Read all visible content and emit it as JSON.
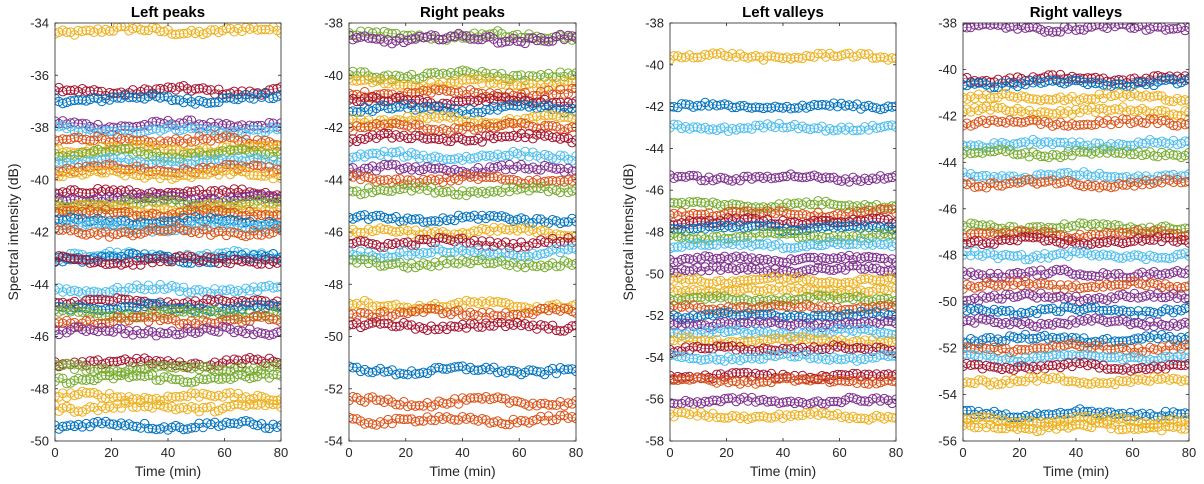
{
  "palette": [
    "#0072BD",
    "#D95319",
    "#EDB120",
    "#7E2F8E",
    "#77AC30",
    "#4DBEEE",
    "#A2142F"
  ],
  "chart_data": [
    {
      "type": "scatter",
      "title": "Left peaks",
      "xlabel": "Time (min)",
      "ylabel": "Spectral intensity (dB)",
      "xlim": [
        0,
        80
      ],
      "ylim": [
        -50,
        -34
      ],
      "xticks": [
        0,
        20,
        40,
        60,
        80
      ],
      "yticks": [
        -50,
        -48,
        -46,
        -44,
        -42,
        -40,
        -38,
        -36,
        -34
      ],
      "grid": false,
      "series": [
        {
          "values": [
            -34.3
          ],
          "color": "#EDB120"
        },
        {
          "values": [
            -36.6
          ],
          "color": "#A2142F"
        },
        {
          "values": [
            -36.9
          ],
          "color": "#0072BD"
        },
        {
          "values": [
            -37.9
          ],
          "color": "#7E2F8E"
        },
        {
          "values": [
            -38.1
          ],
          "color": "#4DBEEE"
        },
        {
          "values": [
            -38.5
          ],
          "color": "#D95319"
        },
        {
          "values": [
            -38.8
          ],
          "color": "#EDB120"
        },
        {
          "values": [
            -39.0
          ],
          "color": "#77AC30"
        },
        {
          "values": [
            -39.3
          ],
          "color": "#4DBEEE"
        },
        {
          "values": [
            -39.6
          ],
          "color": "#D95319"
        },
        {
          "values": [
            -39.8
          ],
          "color": "#EDB120"
        },
        {
          "values": [
            -40.5
          ],
          "color": "#A2142F"
        },
        {
          "values": [
            -40.7
          ],
          "color": "#7E2F8E"
        },
        {
          "values": [
            -40.9
          ],
          "color": "#77AC30"
        },
        {
          "values": [
            -41.1
          ],
          "color": "#EDB120"
        },
        {
          "values": [
            -41.3
          ],
          "color": "#D95319"
        },
        {
          "values": [
            -41.6
          ],
          "color": "#0072BD"
        },
        {
          "values": [
            -41.8
          ],
          "color": "#4DBEEE"
        },
        {
          "values": [
            -42.0
          ],
          "color": "#D95319"
        },
        {
          "values": [
            -42.9
          ],
          "color": "#4DBEEE"
        },
        {
          "values": [
            -43.0
          ],
          "color": "#0072BD"
        },
        {
          "values": [
            -43.1
          ],
          "color": "#A2142F"
        },
        {
          "values": [
            -44.2
          ],
          "color": "#4DBEEE"
        },
        {
          "values": [
            -44.7
          ],
          "color": "#A2142F"
        },
        {
          "values": [
            -44.9
          ],
          "color": "#0072BD"
        },
        {
          "values": [
            -45.1
          ],
          "color": "#77AC30"
        },
        {
          "values": [
            -45.4
          ],
          "color": "#D95319"
        },
        {
          "values": [
            -45.8
          ],
          "color": "#7E2F8E"
        },
        {
          "values": [
            -47.0
          ],
          "color": "#A2142F"
        },
        {
          "values": [
            -47.2
          ],
          "color": "#77AC30"
        },
        {
          "values": [
            -47.6
          ],
          "color": "#77AC30"
        },
        {
          "values": [
            -48.3
          ],
          "color": "#EDB120"
        },
        {
          "values": [
            -48.7
          ],
          "color": "#EDB120"
        },
        {
          "values": [
            -49.4
          ],
          "color": "#0072BD"
        }
      ]
    },
    {
      "type": "scatter",
      "title": "Right peaks",
      "xlabel": "Time (min)",
      "ylabel": "",
      "xlim": [
        0,
        80
      ],
      "ylim": [
        -54,
        -38
      ],
      "xticks": [
        0,
        20,
        40,
        60,
        80
      ],
      "yticks": [
        -54,
        -52,
        -50,
        -48,
        -46,
        -44,
        -42,
        -40,
        -38
      ],
      "grid": false,
      "series": [
        {
          "values": [
            -38.5
          ],
          "color": "#77AC30"
        },
        {
          "values": [
            -38.6
          ],
          "color": "#7E2F8E"
        },
        {
          "values": [
            -40.0
          ],
          "color": "#77AC30"
        },
        {
          "values": [
            -40.3
          ],
          "color": "#EDB120"
        },
        {
          "values": [
            -40.7
          ],
          "color": "#D95319"
        },
        {
          "values": [
            -41.0
          ],
          "color": "#A2142F"
        },
        {
          "values": [
            -41.3
          ],
          "color": "#0072BD"
        },
        {
          "values": [
            -41.7
          ],
          "color": "#EDB120"
        },
        {
          "values": [
            -42.0
          ],
          "color": "#D95319"
        },
        {
          "values": [
            -42.4
          ],
          "color": "#A2142F"
        },
        {
          "values": [
            -43.1
          ],
          "color": "#4DBEEE"
        },
        {
          "values": [
            -43.6
          ],
          "color": "#7E2F8E"
        },
        {
          "values": [
            -44.0
          ],
          "color": "#D95319"
        },
        {
          "values": [
            -44.4
          ],
          "color": "#77AC30"
        },
        {
          "values": [
            -45.5
          ],
          "color": "#0072BD"
        },
        {
          "values": [
            -46.0
          ],
          "color": "#EDB120"
        },
        {
          "values": [
            -46.4
          ],
          "color": "#A2142F"
        },
        {
          "values": [
            -46.8
          ],
          "color": "#4DBEEE"
        },
        {
          "values": [
            -47.2
          ],
          "color": "#77AC30"
        },
        {
          "values": [
            -48.8
          ],
          "color": "#EDB120"
        },
        {
          "values": [
            -49.1
          ],
          "color": "#D95319"
        },
        {
          "values": [
            -49.6
          ],
          "color": "#A2142F"
        },
        {
          "values": [
            -51.3
          ],
          "color": "#0072BD"
        },
        {
          "values": [
            -52.5
          ],
          "color": "#D95319"
        },
        {
          "values": [
            -53.2
          ],
          "color": "#D95319"
        }
      ]
    },
    {
      "type": "scatter",
      "title": "Left valleys",
      "xlabel": "Time (min)",
      "ylabel": "Spectral intensity (dB)",
      "xlim": [
        0,
        80
      ],
      "ylim": [
        -58,
        -38
      ],
      "xticks": [
        0,
        20,
        40,
        60,
        80
      ],
      "yticks": [
        -58,
        -56,
        -54,
        -52,
        -50,
        -48,
        -46,
        -44,
        -42,
        -40,
        -38
      ],
      "grid": false,
      "series": [
        {
          "values": [
            -39.6
          ],
          "color": "#EDB120"
        },
        {
          "values": [
            -42.0
          ],
          "color": "#0072BD"
        },
        {
          "values": [
            -43.0
          ],
          "color": "#4DBEEE"
        },
        {
          "values": [
            -45.4
          ],
          "color": "#7E2F8E"
        },
        {
          "values": [
            -46.7
          ],
          "color": "#77AC30"
        },
        {
          "values": [
            -47.1
          ],
          "color": "#D95319"
        },
        {
          "values": [
            -47.5
          ],
          "color": "#A2142F"
        },
        {
          "values": [
            -47.8
          ],
          "color": "#0072BD"
        },
        {
          "values": [
            -48.2
          ],
          "color": "#77AC30"
        },
        {
          "values": [
            -48.6
          ],
          "color": "#4DBEEE"
        },
        {
          "values": [
            -49.3
          ],
          "color": "#7E2F8E"
        },
        {
          "values": [
            -49.8
          ],
          "color": "#7E2F8E"
        },
        {
          "values": [
            -50.3
          ],
          "color": "#EDB120"
        },
        {
          "values": [
            -50.8
          ],
          "color": "#EDB120"
        },
        {
          "values": [
            -51.2
          ],
          "color": "#77AC30"
        },
        {
          "values": [
            -51.6
          ],
          "color": "#D95319"
        },
        {
          "values": [
            -52.0
          ],
          "color": "#0072BD"
        },
        {
          "values": [
            -52.4
          ],
          "color": "#7E2F8E"
        },
        {
          "values": [
            -52.8
          ],
          "color": "#4DBEEE"
        },
        {
          "values": [
            -53.2
          ],
          "color": "#EDB120"
        },
        {
          "values": [
            -53.6
          ],
          "color": "#A2142F"
        },
        {
          "values": [
            -54.0
          ],
          "color": "#4DBEEE"
        },
        {
          "values": [
            -54.9
          ],
          "color": "#A2142F"
        },
        {
          "values": [
            -55.1
          ],
          "color": "#D95319"
        },
        {
          "values": [
            -56.1
          ],
          "color": "#7E2F8E"
        },
        {
          "values": [
            -56.8
          ],
          "color": "#EDB120"
        }
      ]
    },
    {
      "type": "scatter",
      "title": "Right valleys",
      "xlabel": "Time (min)",
      "ylabel": "",
      "xlim": [
        0,
        80
      ],
      "ylim": [
        -56,
        -38
      ],
      "xticks": [
        0,
        20,
        40,
        60,
        80
      ],
      "yticks": [
        -56,
        -54,
        -52,
        -50,
        -48,
        -46,
        -44,
        -42,
        -40,
        -38
      ],
      "grid": false,
      "series": [
        {
          "values": [
            -38.2
          ],
          "color": "#7E2F8E"
        },
        {
          "values": [
            -40.4
          ],
          "color": "#A2142F"
        },
        {
          "values": [
            -40.6
          ],
          "color": "#0072BD"
        },
        {
          "values": [
            -41.2
          ],
          "color": "#EDB120"
        },
        {
          "values": [
            -41.8
          ],
          "color": "#EDB120"
        },
        {
          "values": [
            -42.3
          ],
          "color": "#D95319"
        },
        {
          "values": [
            -43.2
          ],
          "color": "#4DBEEE"
        },
        {
          "values": [
            -43.6
          ],
          "color": "#77AC30"
        },
        {
          "values": [
            -44.6
          ],
          "color": "#4DBEEE"
        },
        {
          "values": [
            -44.9
          ],
          "color": "#D95319"
        },
        {
          "values": [
            -46.8
          ],
          "color": "#77AC30"
        },
        {
          "values": [
            -47.1
          ],
          "color": "#D95319"
        },
        {
          "values": [
            -47.4
          ],
          "color": "#A2142F"
        },
        {
          "values": [
            -48.0
          ],
          "color": "#4DBEEE"
        },
        {
          "values": [
            -48.8
          ],
          "color": "#7E2F8E"
        },
        {
          "values": [
            -49.3
          ],
          "color": "#D95319"
        },
        {
          "values": [
            -49.8
          ],
          "color": "#7E2F8E"
        },
        {
          "values": [
            -50.4
          ],
          "color": "#0072BD"
        },
        {
          "values": [
            -50.9
          ],
          "color": "#7E2F8E"
        },
        {
          "values": [
            -51.6
          ],
          "color": "#0072BD"
        },
        {
          "values": [
            -52.0
          ],
          "color": "#D95319"
        },
        {
          "values": [
            -52.4
          ],
          "color": "#4DBEEE"
        },
        {
          "values": [
            -52.8
          ],
          "color": "#A2142F"
        },
        {
          "values": [
            -53.4
          ],
          "color": "#EDB120"
        },
        {
          "values": [
            -54.8
          ],
          "color": "#0072BD"
        },
        {
          "values": [
            -55.1
          ],
          "color": "#EDB120"
        },
        {
          "values": [
            -55.4
          ],
          "color": "#EDB120"
        }
      ]
    }
  ]
}
